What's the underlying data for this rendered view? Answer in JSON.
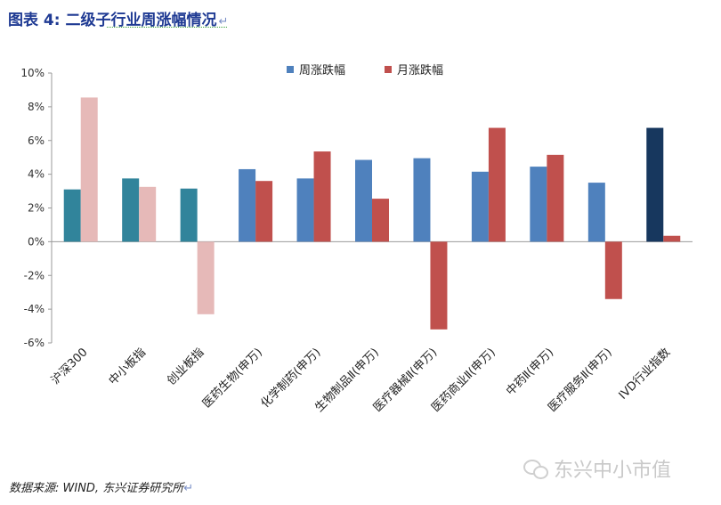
{
  "figure": {
    "title": "图表 4:  二级子行业周涨幅情况",
    "source": "数据来源: WIND, 东兴证券研究所",
    "watermark": "东兴中小市值"
  },
  "chart_data": {
    "type": "bar",
    "title": "",
    "xlabel": "",
    "ylabel": "",
    "ylim": [
      -6,
      10
    ],
    "yticks": [
      -6,
      -4,
      -2,
      0,
      2,
      4,
      6,
      8,
      10
    ],
    "ytick_labels": [
      "-6%",
      "-4%",
      "-2%",
      "0%",
      "2%",
      "4%",
      "6%",
      "8%",
      "10%"
    ],
    "legend_position": "top-center",
    "categories": [
      "沪深300",
      "中小板指",
      "创业板指",
      "医药生物(申万)",
      "化学制药(申万)",
      "生物制品Ⅱ(申万)",
      "医疗器械Ⅱ(申万)",
      "医药商业Ⅱ(申万)",
      "中药Ⅱ(申万)",
      "医疗服务Ⅱ(申万)",
      "IVD行业指数"
    ],
    "series": [
      {
        "name": "周涨跌幅",
        "color": "#4f81bd",
        "values": [
          3.1,
          3.75,
          3.15,
          4.3,
          3.75,
          4.85,
          4.95,
          4.15,
          4.45,
          3.5,
          6.75
        ],
        "bar_colors": [
          "#31849b",
          "#31849b",
          "#31849b",
          "#4f81bd",
          "#4f81bd",
          "#4f81bd",
          "#4f81bd",
          "#4f81bd",
          "#4f81bd",
          "#4f81bd",
          "#17375e"
        ]
      },
      {
        "name": "月涨跌幅",
        "color": "#c0504d",
        "values": [
          8.55,
          3.25,
          -4.3,
          3.6,
          5.35,
          2.55,
          -5.2,
          6.75,
          5.15,
          -3.4,
          0.35
        ],
        "bar_colors": [
          "#e6b9b8",
          "#e6b9b8",
          "#e6b9b8",
          "#c0504d",
          "#c0504d",
          "#c0504d",
          "#c0504d",
          "#c0504d",
          "#c0504d",
          "#c0504d",
          "#c0504d"
        ]
      }
    ],
    "grid": false
  }
}
